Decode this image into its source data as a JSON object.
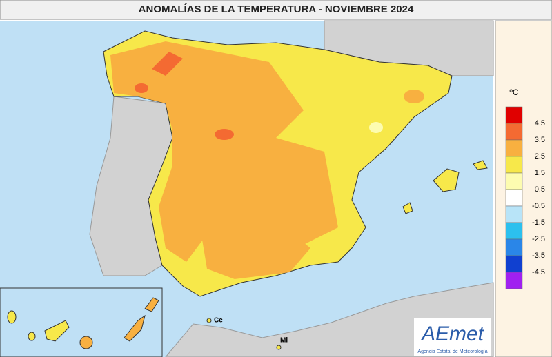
{
  "title": "ANOMALÍAS DE LA TEMPERATURA - NOVIEMBRE 2024",
  "legend": {
    "unit": "ºC",
    "colors": [
      "#e00000",
      "#f46a32",
      "#f8b040",
      "#f7e84a",
      "#fdfcb0",
      "#ffffff",
      "#b8e4f8",
      "#2cc0ee",
      "#2a86e8",
      "#1040d0",
      "#a020f0"
    ],
    "labels": [
      "4.5",
      "3.5",
      "2.5",
      "1.5",
      "0.5",
      "-0.5",
      "-1.5",
      "-2.5",
      "-3.5",
      "-4.5"
    ]
  },
  "places": [
    {
      "label": "Ce"
    },
    {
      "label": "Ml"
    }
  ],
  "logo": {
    "text": "AEmet",
    "subtitle": "Agencia Estatal de Meteorología"
  }
}
